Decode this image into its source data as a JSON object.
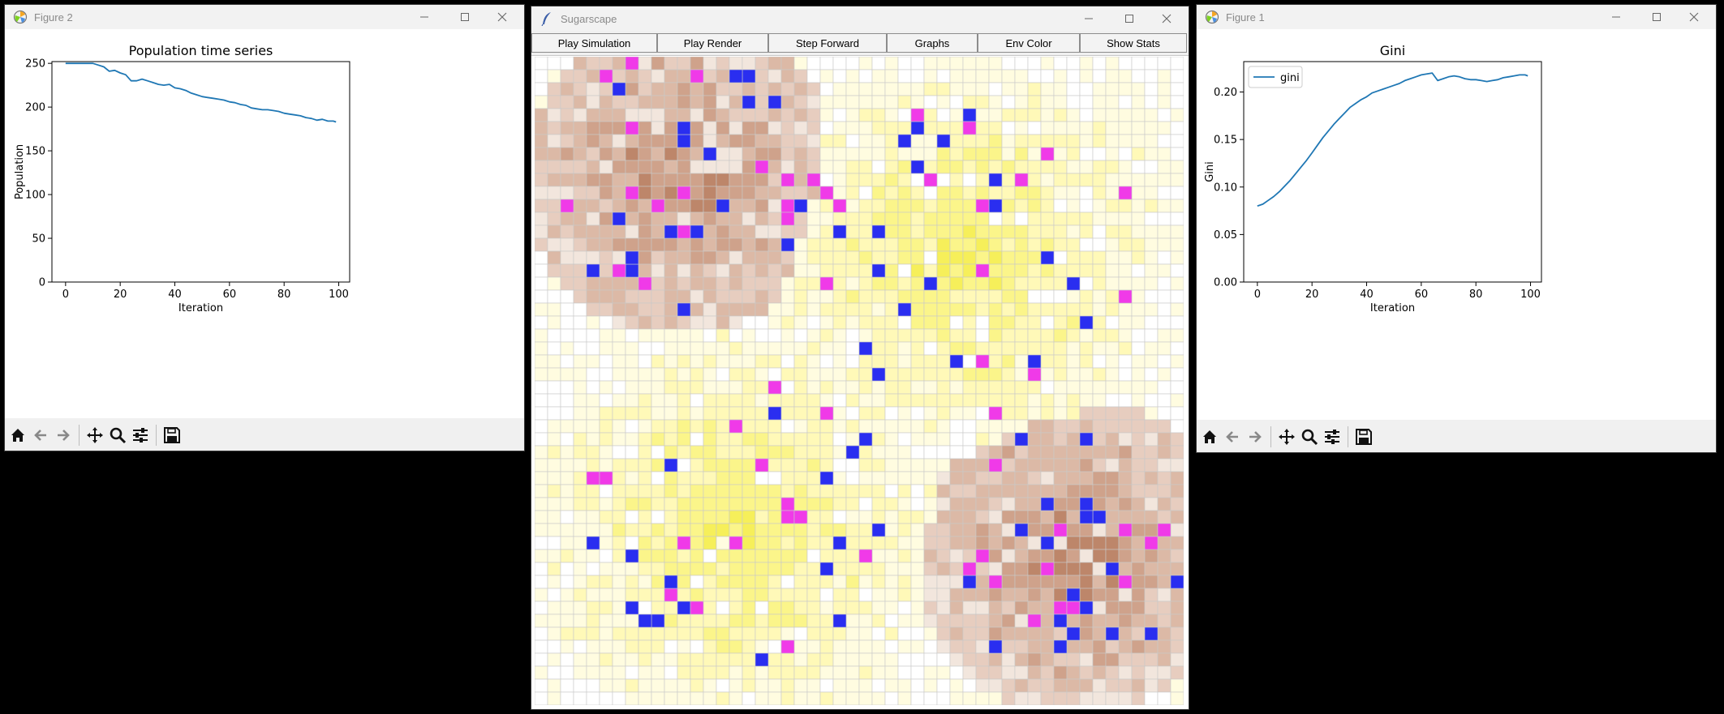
{
  "windows": {
    "figure2": {
      "title": "Figure 2",
      "icon": "matplotlib-icon",
      "toolbar_icons": [
        "home-icon",
        "back-arrow-icon",
        "forward-arrow-icon",
        "pan-icon",
        "zoom-icon",
        "configure-subplots-icon",
        "save-icon"
      ]
    },
    "sugarscape": {
      "title": "Sugarscape",
      "icon": "tk-feather-icon",
      "buttons": [
        "Play Simulation",
        "Play Render",
        "Step Forward",
        "Graphs",
        "Env Color",
        "Show Stats"
      ]
    },
    "figure1": {
      "title": "Figure 1",
      "icon": "matplotlib-icon",
      "toolbar_icons": [
        "home-icon",
        "back-arrow-icon",
        "forward-arrow-icon",
        "pan-icon",
        "zoom-icon",
        "configure-subplots-icon",
        "save-icon"
      ]
    }
  },
  "chart_data": [
    {
      "type": "line",
      "title": "Population time series",
      "xlabel": "Iteration",
      "ylabel": "Population",
      "xlim": [
        -5,
        104
      ],
      "ylim": [
        0,
        252
      ],
      "xticks": [
        "0",
        "20",
        "40",
        "60",
        "80",
        "100"
      ],
      "yticks": [
        "0",
        "50",
        "100",
        "150",
        "200",
        "250"
      ],
      "grid": false,
      "color": "#1f77b4",
      "x": [
        0,
        2,
        4,
        6,
        8,
        10,
        12,
        14,
        16,
        18,
        20,
        22,
        24,
        26,
        28,
        30,
        32,
        34,
        36,
        38,
        40,
        42,
        44,
        46,
        48,
        50,
        52,
        54,
        56,
        58,
        60,
        62,
        64,
        66,
        68,
        70,
        72,
        74,
        76,
        78,
        80,
        82,
        84,
        86,
        88,
        90,
        92,
        94,
        96,
        98,
        99
      ],
      "y": [
        250,
        250,
        250,
        250,
        250,
        250,
        248,
        246,
        241,
        242,
        239,
        237,
        230,
        230,
        232,
        230,
        228,
        226,
        225,
        226,
        222,
        221,
        219,
        216,
        214,
        212,
        211,
        210,
        209,
        208,
        206,
        205,
        203,
        202,
        199,
        198,
        197,
        197,
        196,
        195,
        193,
        192,
        191,
        190,
        188,
        187,
        185,
        186,
        184,
        184,
        183
      ]
    },
    {
      "type": "line",
      "title": "Gini",
      "xlabel": "Iteration",
      "ylabel": "Gini",
      "xlim": [
        -5,
        104
      ],
      "ylim": [
        0,
        0.232
      ],
      "xticks": [
        "0",
        "20",
        "40",
        "60",
        "80",
        "100"
      ],
      "yticks": [
        "0.00",
        "0.05",
        "0.10",
        "0.15",
        "0.20"
      ],
      "grid": false,
      "legend": {
        "position": "upper-left",
        "entries": [
          "gini"
        ]
      },
      "color": "#1f77b4",
      "x": [
        0,
        2,
        4,
        6,
        8,
        10,
        12,
        14,
        16,
        18,
        20,
        22,
        24,
        26,
        28,
        30,
        32,
        34,
        36,
        38,
        40,
        42,
        44,
        46,
        48,
        50,
        52,
        54,
        56,
        58,
        60,
        62,
        64,
        66,
        68,
        70,
        72,
        74,
        76,
        78,
        80,
        82,
        84,
        86,
        88,
        90,
        92,
        94,
        96,
        98,
        99
      ],
      "y": [
        0.08,
        0.082,
        0.086,
        0.09,
        0.095,
        0.101,
        0.107,
        0.114,
        0.121,
        0.128,
        0.136,
        0.144,
        0.152,
        0.159,
        0.166,
        0.172,
        0.178,
        0.184,
        0.188,
        0.192,
        0.195,
        0.199,
        0.201,
        0.203,
        0.205,
        0.207,
        0.209,
        0.212,
        0.214,
        0.216,
        0.218,
        0.219,
        0.22,
        0.212,
        0.214,
        0.216,
        0.217,
        0.216,
        0.214,
        0.213,
        0.213,
        0.212,
        0.211,
        0.212,
        0.213,
        0.215,
        0.216,
        0.217,
        0.218,
        0.218,
        0.217
      ]
    }
  ],
  "grid": {
    "cols": 50,
    "rows": 50,
    "seed": 7,
    "palette": {
      "sugar_peaks": [
        "#ffffff",
        "#fffce0",
        "#fff9b8",
        "#fbf58a",
        "#f6ef5a"
      ],
      "spice_peaks": [
        "#f2e6dd",
        "#e7cdbf",
        "#dcb9a6",
        "#cfa28b",
        "#bd866a"
      ],
      "agent_blue": "#2a2ef0",
      "agent_magenta": "#f03ae8",
      "grid_line": "#c9c9c9"
    }
  }
}
